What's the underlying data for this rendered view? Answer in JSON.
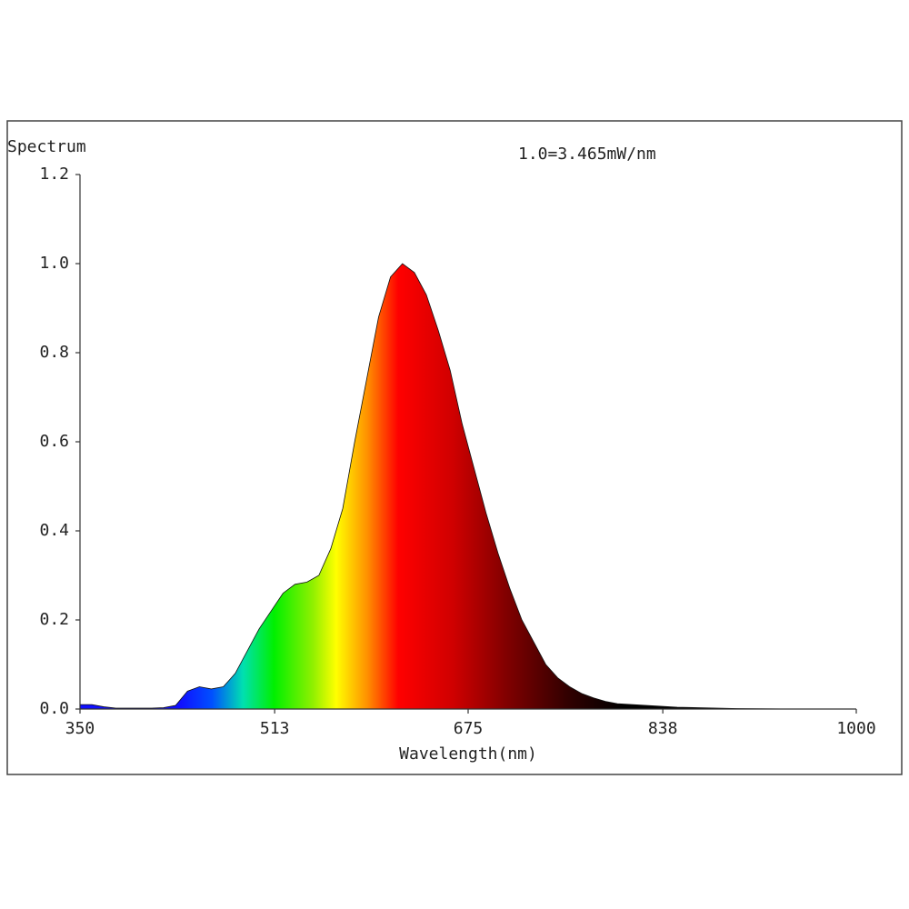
{
  "chart_data": {
    "type": "area",
    "ylabel": "Spectrum",
    "annotation": "1.0=3.465mW/nm",
    "xlabel": "Wavelength(nm)",
    "x": [
      350,
      360,
      370,
      380,
      390,
      400,
      410,
      420,
      430,
      440,
      450,
      460,
      470,
      480,
      490,
      500,
      510,
      520,
      530,
      540,
      550,
      560,
      570,
      580,
      590,
      600,
      610,
      620,
      630,
      640,
      650,
      660,
      670,
      680,
      690,
      700,
      710,
      720,
      730,
      740,
      750,
      760,
      770,
      780,
      790,
      800,
      850,
      900,
      950,
      1000
    ],
    "values": [
      0.01,
      0.01,
      0.005,
      0.002,
      0.002,
      0.002,
      0.002,
      0.003,
      0.008,
      0.04,
      0.05,
      0.045,
      0.05,
      0.08,
      0.13,
      0.18,
      0.22,
      0.26,
      0.28,
      0.285,
      0.3,
      0.36,
      0.45,
      0.6,
      0.74,
      0.88,
      0.97,
      1.0,
      0.98,
      0.93,
      0.85,
      0.76,
      0.64,
      0.54,
      0.44,
      0.35,
      0.27,
      0.2,
      0.15,
      0.1,
      0.07,
      0.05,
      0.035,
      0.025,
      0.017,
      0.012,
      0.004,
      0.001,
      0,
      0
    ],
    "xlim": [
      350,
      1000
    ],
    "xticks": [
      350,
      513,
      675,
      838,
      1000
    ],
    "ylim": [
      0,
      1.2
    ],
    "yticks": [
      {
        "value": 0,
        "label": "0.0"
      },
      0.2,
      0.4,
      0.6,
      0.8,
      {
        "value": 1,
        "label": "1.0"
      },
      1.2
    ]
  }
}
